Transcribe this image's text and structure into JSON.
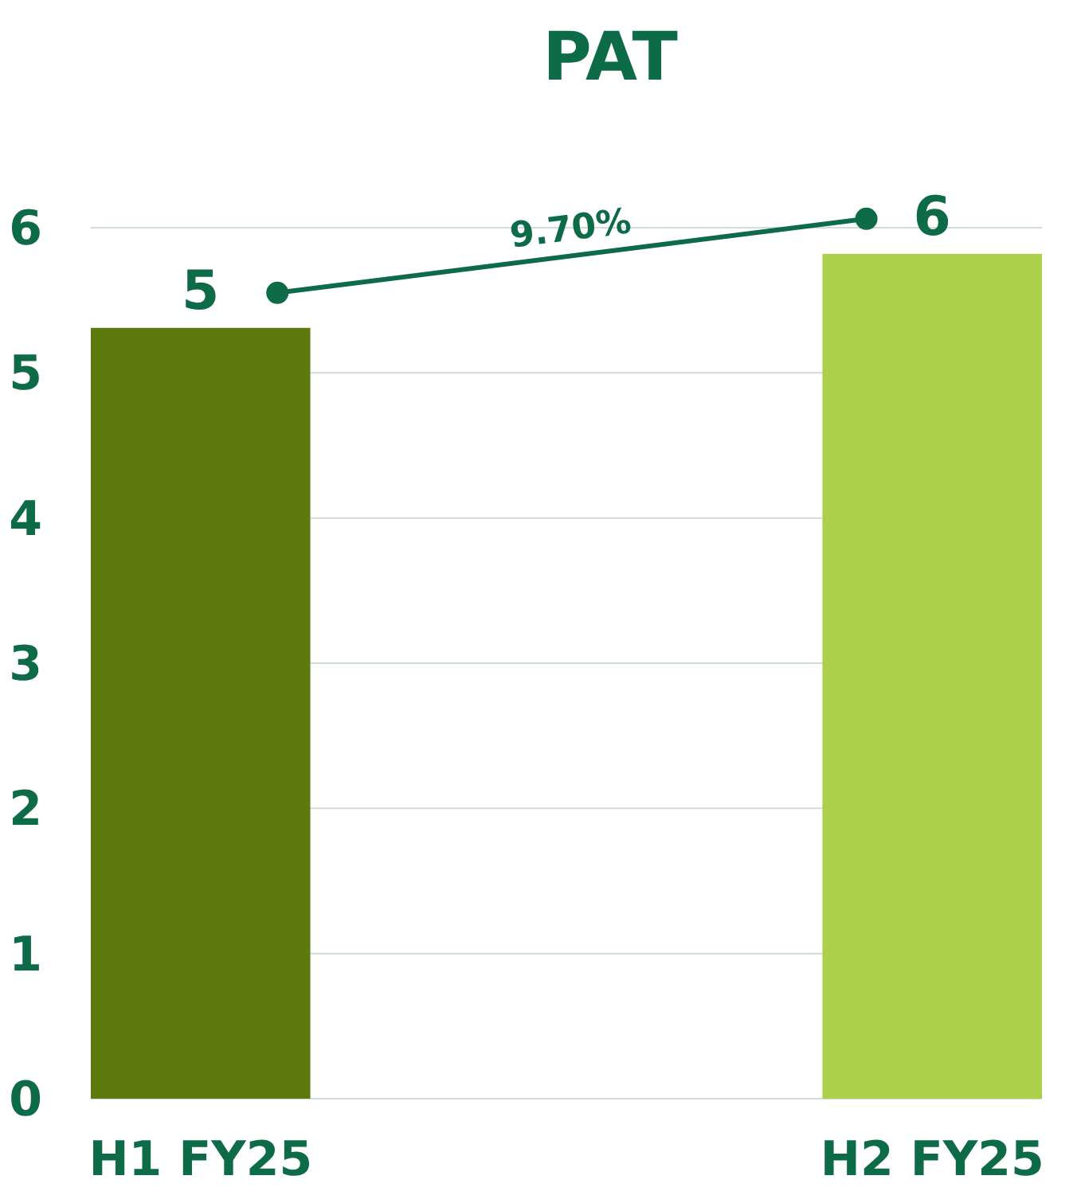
{
  "chart_data": {
    "type": "bar",
    "title": "PAT",
    "categories": [
      "H1 FY25",
      "H2 FY25"
    ],
    "values": [
      5.31,
      5.82
    ],
    "colors": [
      "#5c7a0e",
      "#acd04a"
    ],
    "value_labels": [
      "5",
      "6"
    ],
    "ylim": [
      0,
      6
    ],
    "yticks": [
      0,
      1,
      2,
      3,
      4,
      5,
      6
    ],
    "grid": "y",
    "annotations": [
      "9.70%"
    ]
  }
}
